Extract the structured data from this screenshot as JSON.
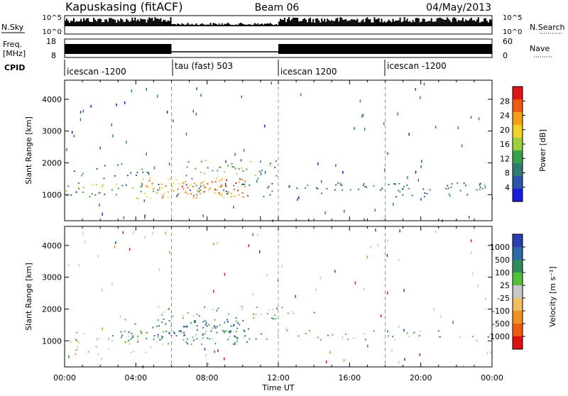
{
  "header": {
    "station": "Kapuskasing (fitACF)",
    "beam": "Beam 06",
    "date": "04/May/2013"
  },
  "nsky_panel": {
    "label": "N.Sky",
    "right_label": "N.Search",
    "left_ticks": [
      "10^5",
      "10^0"
    ],
    "right_ticks": [
      "10^5",
      "10^0"
    ]
  },
  "freq_panel": {
    "label_line1": "Freq.",
    "label_line2": "[MHz]",
    "right_label": "Nave",
    "left_ticks": [
      "18",
      "8"
    ],
    "right_ticks": [
      "60",
      "0"
    ]
  },
  "cpid": {
    "label": "CPID",
    "segments": [
      {
        "label": "icescan -1200",
        "start_hour": 0
      },
      {
        "label": "tau (fast) 503",
        "start_hour": 6
      },
      {
        "label": "icescan 1200",
        "start_hour": 12
      },
      {
        "label": "icescan -1200",
        "start_hour": 18
      }
    ]
  },
  "chart_data": [
    {
      "type": "heatmap",
      "title": "",
      "xlabel": "",
      "ylabel": "Slant Range [km]",
      "xlim_hours": [
        0,
        24
      ],
      "ylim_km": [
        180,
        4600
      ],
      "y_ticks": [
        "1000",
        "2000",
        "3000",
        "4000"
      ],
      "colorbar_label": "Power [dB]",
      "colorbar_ticks": [
        "4",
        "8",
        "12",
        "16",
        "20",
        "24",
        "28"
      ],
      "colorbar_range": [
        0,
        32
      ],
      "colors": [
        "#1a1adc",
        "#2a55aa",
        "#2e7d6e",
        "#37a04a",
        "#9ad13a",
        "#f0d22a",
        "#f59f1a",
        "#f05a14",
        "#e01414"
      ],
      "regions": [
        {
          "name": "background band",
          "t": [
            0,
            24
          ],
          "r": [
            950,
            1400
          ],
          "value": 7,
          "density": 0.35
        },
        {
          "name": "early band",
          "t": [
            0,
            6
          ],
          "r": [
            1050,
            1350
          ],
          "value": 16,
          "density": 0.5
        },
        {
          "name": "morning layer",
          "t": [
            4,
            10.5
          ],
          "r": [
            900,
            1600
          ],
          "value": 22,
          "density": 0.7
        },
        {
          "name": "strong echoes",
          "t": [
            6.5,
            9.8
          ],
          "r": [
            950,
            1500
          ],
          "value": 27,
          "density": 0.6
        },
        {
          "name": "upper layer",
          "t": [
            6.5,
            12
          ],
          "r": [
            1500,
            2100
          ],
          "value": 12,
          "density": 0.5
        },
        {
          "name": "early upper",
          "t": [
            0.5,
            5
          ],
          "r": [
            1500,
            2000
          ],
          "value": 6,
          "density": 0.35
        },
        {
          "name": "late band",
          "t": [
            12,
            24
          ],
          "r": [
            1100,
            1400
          ],
          "value": 6,
          "density": 0.3
        }
      ]
    },
    {
      "type": "heatmap",
      "title": "",
      "xlabel": "Time UT",
      "ylabel": "Slant Range [km]",
      "xlim_hours": [
        0,
        24
      ],
      "ylim_km": [
        180,
        4600
      ],
      "y_ticks": [
        "1000",
        "2000",
        "3000",
        "4000"
      ],
      "x_ticks": [
        "00:00",
        "04:00",
        "08:00",
        "12:00",
        "16:00",
        "20:00",
        "00:00"
      ],
      "colorbar_label": "Velocity [m s⁻¹]",
      "colorbar_ticks": [
        "1000",
        "500",
        "100",
        "25",
        "-25",
        "-100",
        "-500",
        "-1000"
      ],
      "colors": [
        "#2a3fb0",
        "#2f6aa8",
        "#2e8c5a",
        "#52c23a",
        "#c8c8c8",
        "#f0c060",
        "#f09020",
        "#f05a10",
        "#e01010"
      ],
      "regions": [
        {
          "name": "ground scatter",
          "t": [
            0.5,
            24
          ],
          "r": [
            1050,
            1350
          ],
          "value": "25",
          "density": 0.4
        },
        {
          "name": "early positive",
          "t": [
            0,
            5.5
          ],
          "r": [
            600,
            1100
          ],
          "value": "-100",
          "density": 0.4
        },
        {
          "name": "morning green",
          "t": [
            3,
            10.5
          ],
          "r": [
            900,
            1700
          ],
          "value": "100",
          "density": 0.65
        },
        {
          "name": "morning dark",
          "t": [
            5,
            10
          ],
          "r": [
            1100,
            1700
          ],
          "value": "500",
          "density": 0.4
        },
        {
          "name": "upper grey",
          "t": [
            5,
            14
          ],
          "r": [
            1700,
            2100
          ],
          "value": "25",
          "density": 0.5
        }
      ]
    }
  ]
}
